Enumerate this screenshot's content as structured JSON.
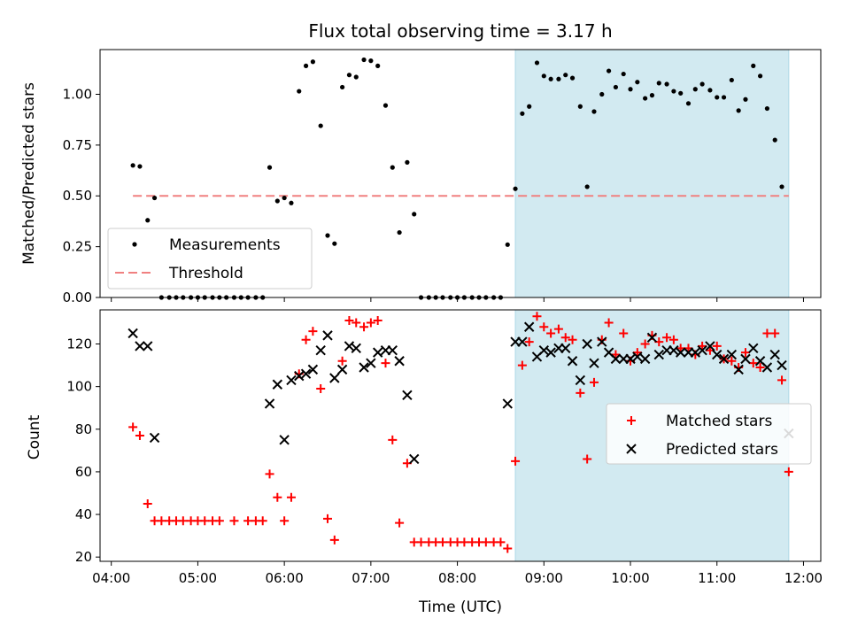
{
  "chart_data": [
    {
      "type": "scatter",
      "title": "Flux total observing time = 3.17 h",
      "ylabel": "Matched/Predicted stars",
      "xlabel": "",
      "ylim": [
        0,
        1.22
      ],
      "yticks": [
        "0.00",
        "0.25",
        "0.50",
        "0.75",
        "1.00"
      ],
      "ytick_values": [
        0,
        0.25,
        0.5,
        0.75,
        1.0
      ],
      "xlim_hours": [
        3.87,
        12.2
      ],
      "shaded_region_hours": [
        8.67,
        11.83
      ],
      "threshold": 0.5,
      "threshold_range_hours": [
        4.25,
        11.83
      ],
      "legend": {
        "placement": "lower-left",
        "entries": [
          "Measurements",
          "Threshold"
        ]
      },
      "colors": {
        "measurements": "#000000",
        "threshold": "#f08080",
        "shade": "#add8e6"
      },
      "series": [
        {
          "name": "Measurements",
          "x": [
            4.25,
            4.33,
            4.42,
            4.5,
            4.58,
            4.67,
            4.75,
            4.83,
            4.92,
            5.0,
            5.08,
            5.17,
            5.25,
            5.33,
            5.42,
            5.5,
            5.58,
            5.67,
            5.75,
            5.83,
            5.92,
            6.0,
            6.08,
            6.17,
            6.25,
            6.33,
            6.42,
            6.5,
            6.58,
            6.67,
            6.75,
            6.83,
            6.92,
            7.0,
            7.08,
            7.17,
            7.25,
            7.33,
            7.42,
            7.5,
            7.58,
            7.67,
            7.75,
            7.83,
            7.92,
            8.0,
            8.08,
            8.17,
            8.25,
            8.33,
            8.42,
            8.5,
            8.58,
            8.67,
            8.75,
            8.83,
            8.92,
            9.0,
            9.08,
            9.17,
            9.25,
            9.33,
            9.42,
            9.5,
            9.58,
            9.67,
            9.75,
            9.83,
            9.92,
            10.0,
            10.08,
            10.17,
            10.25,
            10.33,
            10.42,
            10.5,
            10.58,
            10.67,
            10.75,
            10.83,
            10.92,
            11.0,
            11.08,
            11.17,
            11.25,
            11.33,
            11.42,
            11.5,
            11.58,
            11.67,
            11.75,
            11.83
          ],
          "y": [
            0.65,
            0.645,
            0.38,
            0.49,
            0,
            0,
            0,
            0,
            0,
            0,
            0,
            0,
            0,
            0,
            0,
            0,
            0,
            0,
            0,
            0.64,
            0.475,
            0.49,
            0.465,
            1.015,
            1.14,
            1.16,
            0.845,
            0.305,
            0.265,
            1.035,
            1.095,
            1.085,
            1.17,
            1.165,
            1.14,
            0.945,
            0.64,
            0.32,
            0.665,
            0.41,
            0,
            0,
            0,
            0,
            0,
            0,
            0,
            0,
            0,
            0,
            0,
            0,
            0.26,
            0.535,
            0.905,
            0.94,
            1.155,
            1.09,
            1.075,
            1.075,
            1.095,
            1.08,
            0.94,
            0.545,
            0.915,
            1.0,
            1.115,
            1.035,
            1.1,
            1.025,
            1.06,
            0.98,
            0.995,
            1.055,
            1.05,
            1.015,
            1.005,
            0.955,
            1.025,
            1.05,
            1.02,
            0.985,
            0.985,
            1.07,
            0.92,
            0.975,
            1.14,
            1.09,
            0.93,
            0.775,
            0.545,
            null
          ]
        }
      ]
    },
    {
      "type": "scatter",
      "title": "",
      "xlabel": "Time (UTC)",
      "ylabel": "Count",
      "ylim": [
        18,
        136
      ],
      "yticks": [
        "20",
        "40",
        "60",
        "80",
        "100",
        "120"
      ],
      "ytick_values": [
        20,
        40,
        60,
        80,
        100,
        120
      ],
      "xticks": [
        "04:00",
        "05:00",
        "06:00",
        "07:00",
        "08:00",
        "09:00",
        "10:00",
        "11:00",
        "12:00"
      ],
      "xtick_hours": [
        4,
        5,
        6,
        7,
        8,
        9,
        10,
        11,
        12
      ],
      "xlim_hours": [
        3.87,
        12.2
      ],
      "shaded_region_hours": [
        8.67,
        11.83
      ],
      "legend": {
        "placement": "center-right",
        "entries": [
          "Matched stars",
          "Predicted stars"
        ]
      },
      "colors": {
        "matched": "#ff0000",
        "predicted": "#000000",
        "shade": "#add8e6"
      },
      "series": [
        {
          "name": "Matched stars",
          "x": [
            4.25,
            4.33,
            4.42,
            4.5,
            4.58,
            4.67,
            4.75,
            4.83,
            4.92,
            5.0,
            5.08,
            5.17,
            5.25,
            5.42,
            5.58,
            5.67,
            5.75,
            5.83,
            5.92,
            6.0,
            6.08,
            6.17,
            6.25,
            6.33,
            6.42,
            6.5,
            6.58,
            6.67,
            6.75,
            6.83,
            6.92,
            7.0,
            7.08,
            7.17,
            7.25,
            7.33,
            7.42,
            7.5,
            7.58,
            7.67,
            7.75,
            7.83,
            7.92,
            8.0,
            8.08,
            8.17,
            8.25,
            8.33,
            8.42,
            8.5,
            8.58,
            8.67,
            8.75,
            8.83,
            8.92,
            9.0,
            9.08,
            9.17,
            9.25,
            9.33,
            9.42,
            9.5,
            9.58,
            9.67,
            9.75,
            9.83,
            9.92,
            10.0,
            10.08,
            10.17,
            10.25,
            10.33,
            10.42,
            10.5,
            10.58,
            10.67,
            10.75,
            10.83,
            10.92,
            11.0,
            11.08,
            11.17,
            11.25,
            11.33,
            11.42,
            11.5,
            11.58,
            11.67,
            11.75,
            11.83
          ],
          "y": [
            81,
            77,
            45,
            37,
            37,
            37,
            37,
            37,
            37,
            37,
            37,
            37,
            37,
            37,
            37,
            37,
            37,
            59,
            48,
            37,
            48,
            106,
            122,
            126,
            99,
            38,
            28,
            112,
            131,
            130,
            128,
            130,
            131,
            111,
            75,
            36,
            64,
            27,
            27,
            27,
            27,
            27,
            27,
            27,
            27,
            27,
            27,
            27,
            27,
            27,
            24,
            65,
            110,
            121,
            133,
            128,
            125,
            127,
            123,
            122,
            97,
            66,
            102,
            122,
            130,
            115,
            125,
            112,
            116,
            120,
            124,
            121,
            123,
            122,
            118,
            118,
            115,
            119,
            117,
            119,
            113,
            112,
            109,
            116,
            111,
            109,
            125,
            125,
            103,
            60
          ]
        },
        {
          "name": "Predicted stars",
          "x": [
            4.25,
            4.33,
            4.42,
            4.5,
            5.83,
            5.92,
            6.0,
            6.08,
            6.17,
            6.25,
            6.33,
            6.42,
            6.5,
            6.58,
            6.67,
            6.75,
            6.83,
            6.92,
            7.0,
            7.08,
            7.17,
            7.25,
            7.33,
            7.42,
            7.5,
            8.58,
            8.67,
            8.75,
            8.83,
            8.92,
            9.0,
            9.08,
            9.17,
            9.25,
            9.33,
            9.42,
            9.5,
            9.58,
            9.67,
            9.75,
            9.83,
            9.92,
            10.0,
            10.08,
            10.17,
            10.25,
            10.33,
            10.42,
            10.5,
            10.58,
            10.67,
            10.75,
            10.83,
            10.92,
            11.0,
            11.08,
            11.17,
            11.25,
            11.33,
            11.42,
            11.5,
            11.58,
            11.67,
            11.75,
            11.83
          ],
          "y": [
            125,
            119,
            119,
            76,
            92,
            101,
            75,
            103,
            105,
            106,
            108,
            117,
            124,
            104,
            108,
            119,
            118,
            109,
            111,
            116,
            117,
            117,
            112,
            96,
            66,
            92,
            121,
            121,
            128,
            114,
            117,
            116,
            118,
            118,
            112,
            103,
            120,
            111,
            121,
            116,
            113,
            113,
            113,
            114,
            113,
            123,
            115,
            117,
            117,
            116,
            116,
            116,
            117,
            119,
            115,
            113,
            115,
            108,
            113,
            118,
            112,
            109,
            115,
            110,
            78
          ]
        }
      ]
    }
  ]
}
